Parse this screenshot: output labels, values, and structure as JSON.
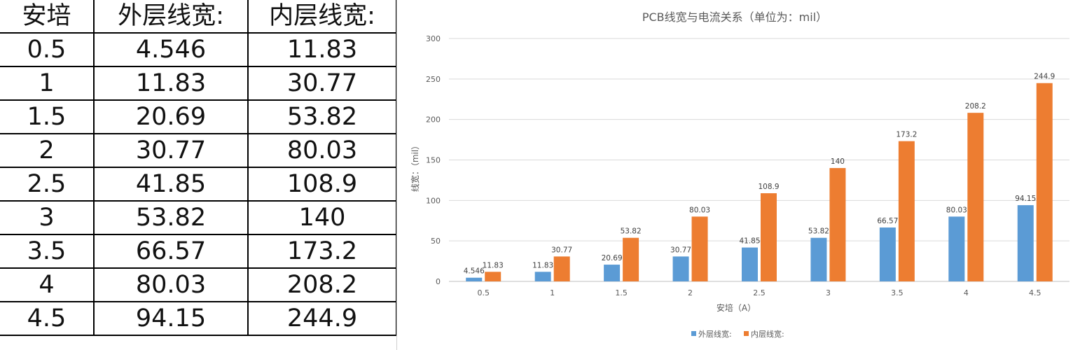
{
  "table": {
    "headers": [
      "安培",
      "外层线宽:",
      "内层线宽:"
    ],
    "rows": [
      [
        "0.5",
        "4.546",
        "11.83"
      ],
      [
        "1",
        "11.83",
        "30.77"
      ],
      [
        "1.5",
        "20.69",
        "53.82"
      ],
      [
        "2",
        "30.77",
        "80.03"
      ],
      [
        "2.5",
        "41.85",
        "108.9"
      ],
      [
        "3",
        "53.82",
        "140"
      ],
      [
        "3.5",
        "66.57",
        "173.2"
      ],
      [
        "4",
        "80.03",
        "208.2"
      ],
      [
        "4.5",
        "94.15",
        "244.9"
      ]
    ]
  },
  "chart_data": {
    "type": "bar",
    "title": "PCB线宽与电流关系（单位为：mil）",
    "xlabel": "安培（A）",
    "ylabel": "线宽：（mil）",
    "categories": [
      "0.5",
      "1",
      "1.5",
      "2",
      "2.5",
      "3",
      "3.5",
      "4",
      "4.5"
    ],
    "series": [
      {
        "name": "外层线宽:",
        "color": "#5b9bd5",
        "values": [
          4.546,
          11.83,
          20.69,
          30.77,
          41.85,
          53.82,
          66.57,
          80.03,
          94.15
        ]
      },
      {
        "name": "内层线宽:",
        "color": "#ed7d31",
        "values": [
          11.83,
          30.77,
          53.82,
          80.03,
          108.9,
          140,
          173.2,
          208.2,
          244.9
        ]
      }
    ],
    "ylim": [
      0,
      300
    ],
    "yticks": [
      0,
      50,
      100,
      150,
      200,
      250,
      300
    ],
    "grid": true,
    "legend_position": "bottom"
  }
}
